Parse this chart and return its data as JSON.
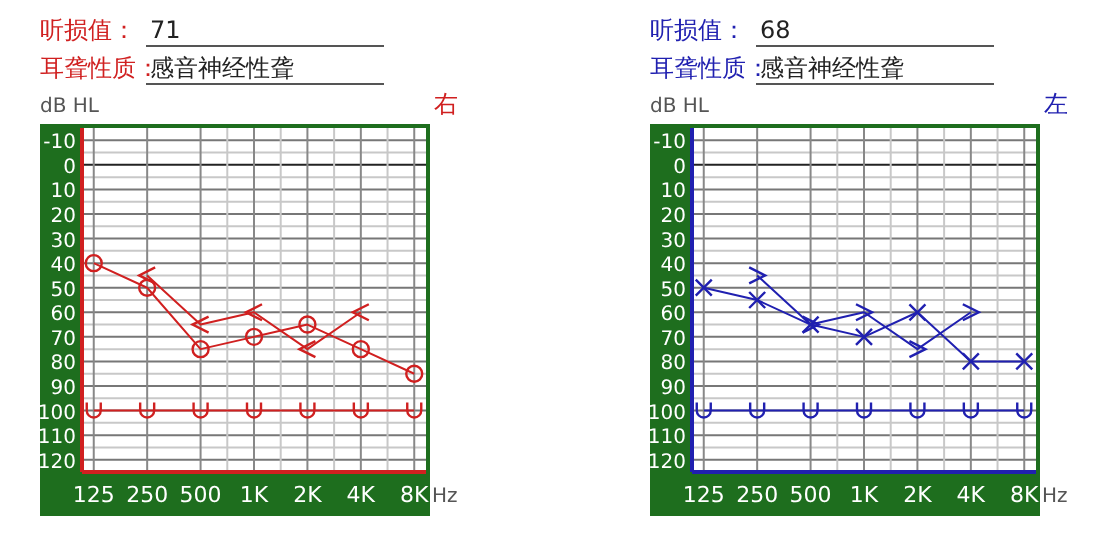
{
  "chart_data": [
    {
      "type": "line",
      "title": "右",
      "annotations": [
        "听损值：",
        "71",
        "耳聋性质：",
        "感音神经性聋"
      ],
      "ylabel": "dB HL",
      "xlabel": "Hz",
      "categories": [
        "125",
        "250",
        "500",
        "1K",
        "2K",
        "4K",
        "8K"
      ],
      "ylim": [
        125,
        -15
      ],
      "yticks": [
        -10,
        0,
        10,
        20,
        30,
        40,
        50,
        60,
        70,
        80,
        90,
        100,
        110,
        120
      ],
      "grid": true,
      "series": [
        {
          "color": "#d02020",
          "marker": "circle",
          "values": [
            40,
            50,
            75,
            70,
            65,
            75,
            85
          ]
        },
        {
          "color": "#d02020",
          "marker": "cross",
          "values": [
            null,
            45,
            65,
            60,
            75,
            60,
            null
          ]
        },
        {
          "color": "#d02020",
          "marker": "cross",
          "values": [
            100,
            100,
            100,
            100,
            100,
            100,
            100
          ]
        }
      ]
    },
    {
      "type": "line",
      "title": "左",
      "annotations": [
        "听损值：",
        "68",
        "耳聋性质：",
        "感音神经性聋"
      ],
      "ylabel": "dB HL",
      "xlabel": "Hz",
      "categories": [
        "125",
        "250",
        "500",
        "1K",
        "2K",
        "4K",
        "8K"
      ],
      "ylim": [
        125,
        -15
      ],
      "yticks": [
        -10,
        0,
        10,
        20,
        30,
        40,
        50,
        60,
        70,
        80,
        90,
        100,
        110,
        120
      ],
      "grid": true,
      "series": [
        {
          "color": "#2020b0",
          "marker": "cross",
          "values": [
            50,
            55,
            65,
            70,
            60,
            80,
            80
          ]
        },
        {
          "color": "#2020b0",
          "marker": "cross",
          "values": [
            null,
            45,
            65,
            60,
            75,
            60,
            null
          ]
        },
        {
          "color": "#2020b0",
          "marker": "cross",
          "values": [
            100,
            100,
            100,
            100,
            100,
            100,
            100
          ]
        }
      ]
    }
  ]
}
